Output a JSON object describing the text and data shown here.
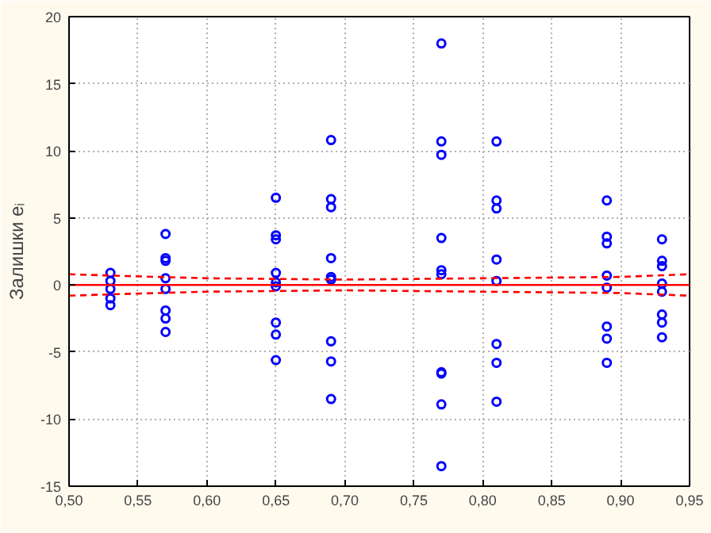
{
  "chart_data": {
    "type": "scatter",
    "ylabel": "Залишки eᵢ",
    "xlim": [
      0.5,
      0.95
    ],
    "ylim": [
      -15,
      20
    ],
    "xticks": [
      {
        "value": 0.5,
        "label": "0,50"
      },
      {
        "value": 0.55,
        "label": "0,55"
      },
      {
        "value": 0.6,
        "label": "0,60"
      },
      {
        "value": 0.65,
        "label": "0,65"
      },
      {
        "value": 0.7,
        "label": "0,70"
      },
      {
        "value": 0.75,
        "label": "0,75"
      },
      {
        "value": 0.8,
        "label": "0,80"
      },
      {
        "value": 0.85,
        "label": "0,85"
      },
      {
        "value": 0.9,
        "label": "0,90"
      },
      {
        "value": 0.95,
        "label": "0,95"
      }
    ],
    "yticks": [
      -15,
      -10,
      -5,
      0,
      5,
      10,
      15,
      20
    ],
    "grid": true,
    "marker": "circle",
    "series": [
      {
        "color": "#0000ff",
        "x": [
          0.53,
          0.53,
          0.53,
          0.53,
          0.53,
          0.57,
          0.57,
          0.57,
          0.57,
          0.57,
          0.57,
          0.57,
          0.57,
          0.65,
          0.65,
          0.65,
          0.65,
          0.65,
          0.65,
          0.65,
          0.65,
          0.65,
          0.69,
          0.69,
          0.69,
          0.69,
          0.69,
          0.69,
          0.69,
          0.69,
          0.69,
          0.77,
          0.77,
          0.77,
          0.77,
          0.77,
          0.77,
          0.77,
          0.77,
          0.77,
          0.77,
          0.81,
          0.81,
          0.81,
          0.81,
          0.81,
          0.81,
          0.81,
          0.81,
          0.89,
          0.89,
          0.89,
          0.89,
          0.89,
          0.89,
          0.89,
          0.89,
          0.93,
          0.93,
          0.93,
          0.93,
          0.93,
          0.93,
          0.93,
          0.93
        ],
        "values": [
          0.9,
          0.3,
          -0.3,
          -1.0,
          -1.5,
          3.8,
          2.0,
          1.8,
          0.5,
          -0.3,
          -1.9,
          -2.5,
          -3.5,
          6.5,
          3.7,
          3.4,
          0.9,
          0.2,
          -0.1,
          -2.8,
          -3.7,
          -5.6,
          10.8,
          6.4,
          5.8,
          2.0,
          0.6,
          0.4,
          -4.2,
          -5.7,
          -8.5,
          18.0,
          10.7,
          9.7,
          3.5,
          1.1,
          0.8,
          -6.5,
          -6.6,
          -8.9,
          -13.5,
          10.7,
          6.3,
          5.7,
          1.9,
          0.3,
          -4.4,
          -5.8,
          -8.7,
          6.3,
          3.6,
          3.1,
          0.7,
          -0.2,
          -3.1,
          -4.0,
          -5.8,
          3.4,
          1.8,
          1.4,
          0.1,
          -0.5,
          -2.2,
          -2.8,
          -3.9
        ]
      },
      {
        "type": "line",
        "color": "#ff0000",
        "line_style": "solid",
        "marker": "none",
        "x": [
          0.5,
          0.95
        ],
        "values": [
          0,
          0
        ]
      },
      {
        "type": "line",
        "color": "#ff0000",
        "line_style": "dashed",
        "marker": "none",
        "x": [
          0.5,
          0.53,
          0.6,
          0.7,
          0.8,
          0.9,
          0.95
        ],
        "values": [
          0.8,
          0.7,
          0.5,
          0.4,
          0.5,
          0.6,
          0.8
        ]
      },
      {
        "type": "line",
        "color": "#ff0000",
        "line_style": "dashed",
        "marker": "none",
        "x": [
          0.5,
          0.53,
          0.6,
          0.7,
          0.8,
          0.9,
          0.95
        ],
        "values": [
          -0.8,
          -0.7,
          -0.5,
          -0.4,
          -0.5,
          -0.6,
          -0.8
        ]
      }
    ]
  }
}
